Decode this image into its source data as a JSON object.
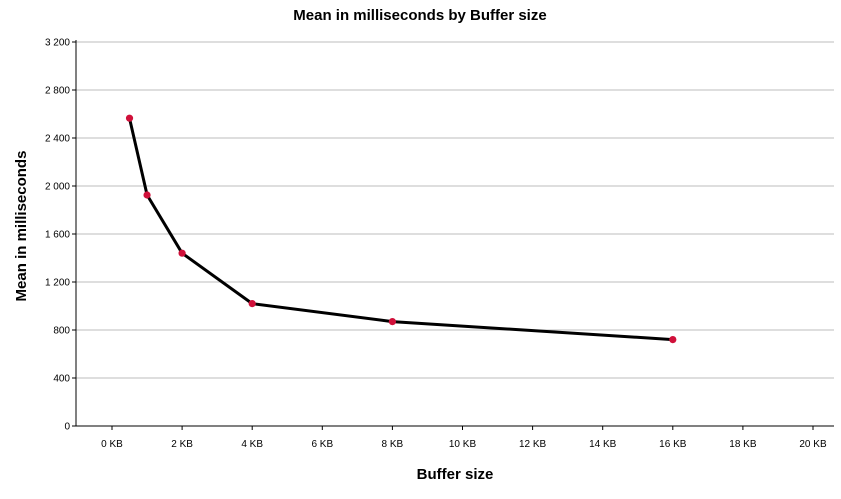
{
  "chart_data": {
    "type": "line",
    "title": "Mean in milliseconds by Buffer size",
    "xlabel": "Buffer size",
    "ylabel": "Mean in milliseconds",
    "xlim": [
      0,
      20
    ],
    "ylim": [
      0,
      3200
    ],
    "x_ticks": [
      0,
      2,
      4,
      6,
      8,
      10,
      12,
      14,
      16,
      18,
      20
    ],
    "x_tick_labels": [
      "0 KB",
      "2 KB",
      "4 KB",
      "6 KB",
      "8 KB",
      "10 KB",
      "12 KB",
      "14 KB",
      "16 KB",
      "18 KB",
      "20 KB"
    ],
    "y_ticks": [
      0,
      400,
      800,
      1200,
      1600,
      2000,
      2400,
      2800,
      3200
    ],
    "y_tick_labels": [
      "0",
      "400",
      "800",
      "1 200",
      "1 600",
      "2 000",
      "2 400",
      "2 800",
      "3 200"
    ],
    "grid": "horizontal",
    "legend": "none",
    "series": [
      {
        "x": [
          0.5,
          1,
          2,
          4,
          8,
          16
        ],
        "values": [
          2565,
          1925,
          1440,
          1020,
          870,
          720
        ],
        "line_color": "#000000",
        "marker_color": "#d0103a"
      }
    ]
  }
}
